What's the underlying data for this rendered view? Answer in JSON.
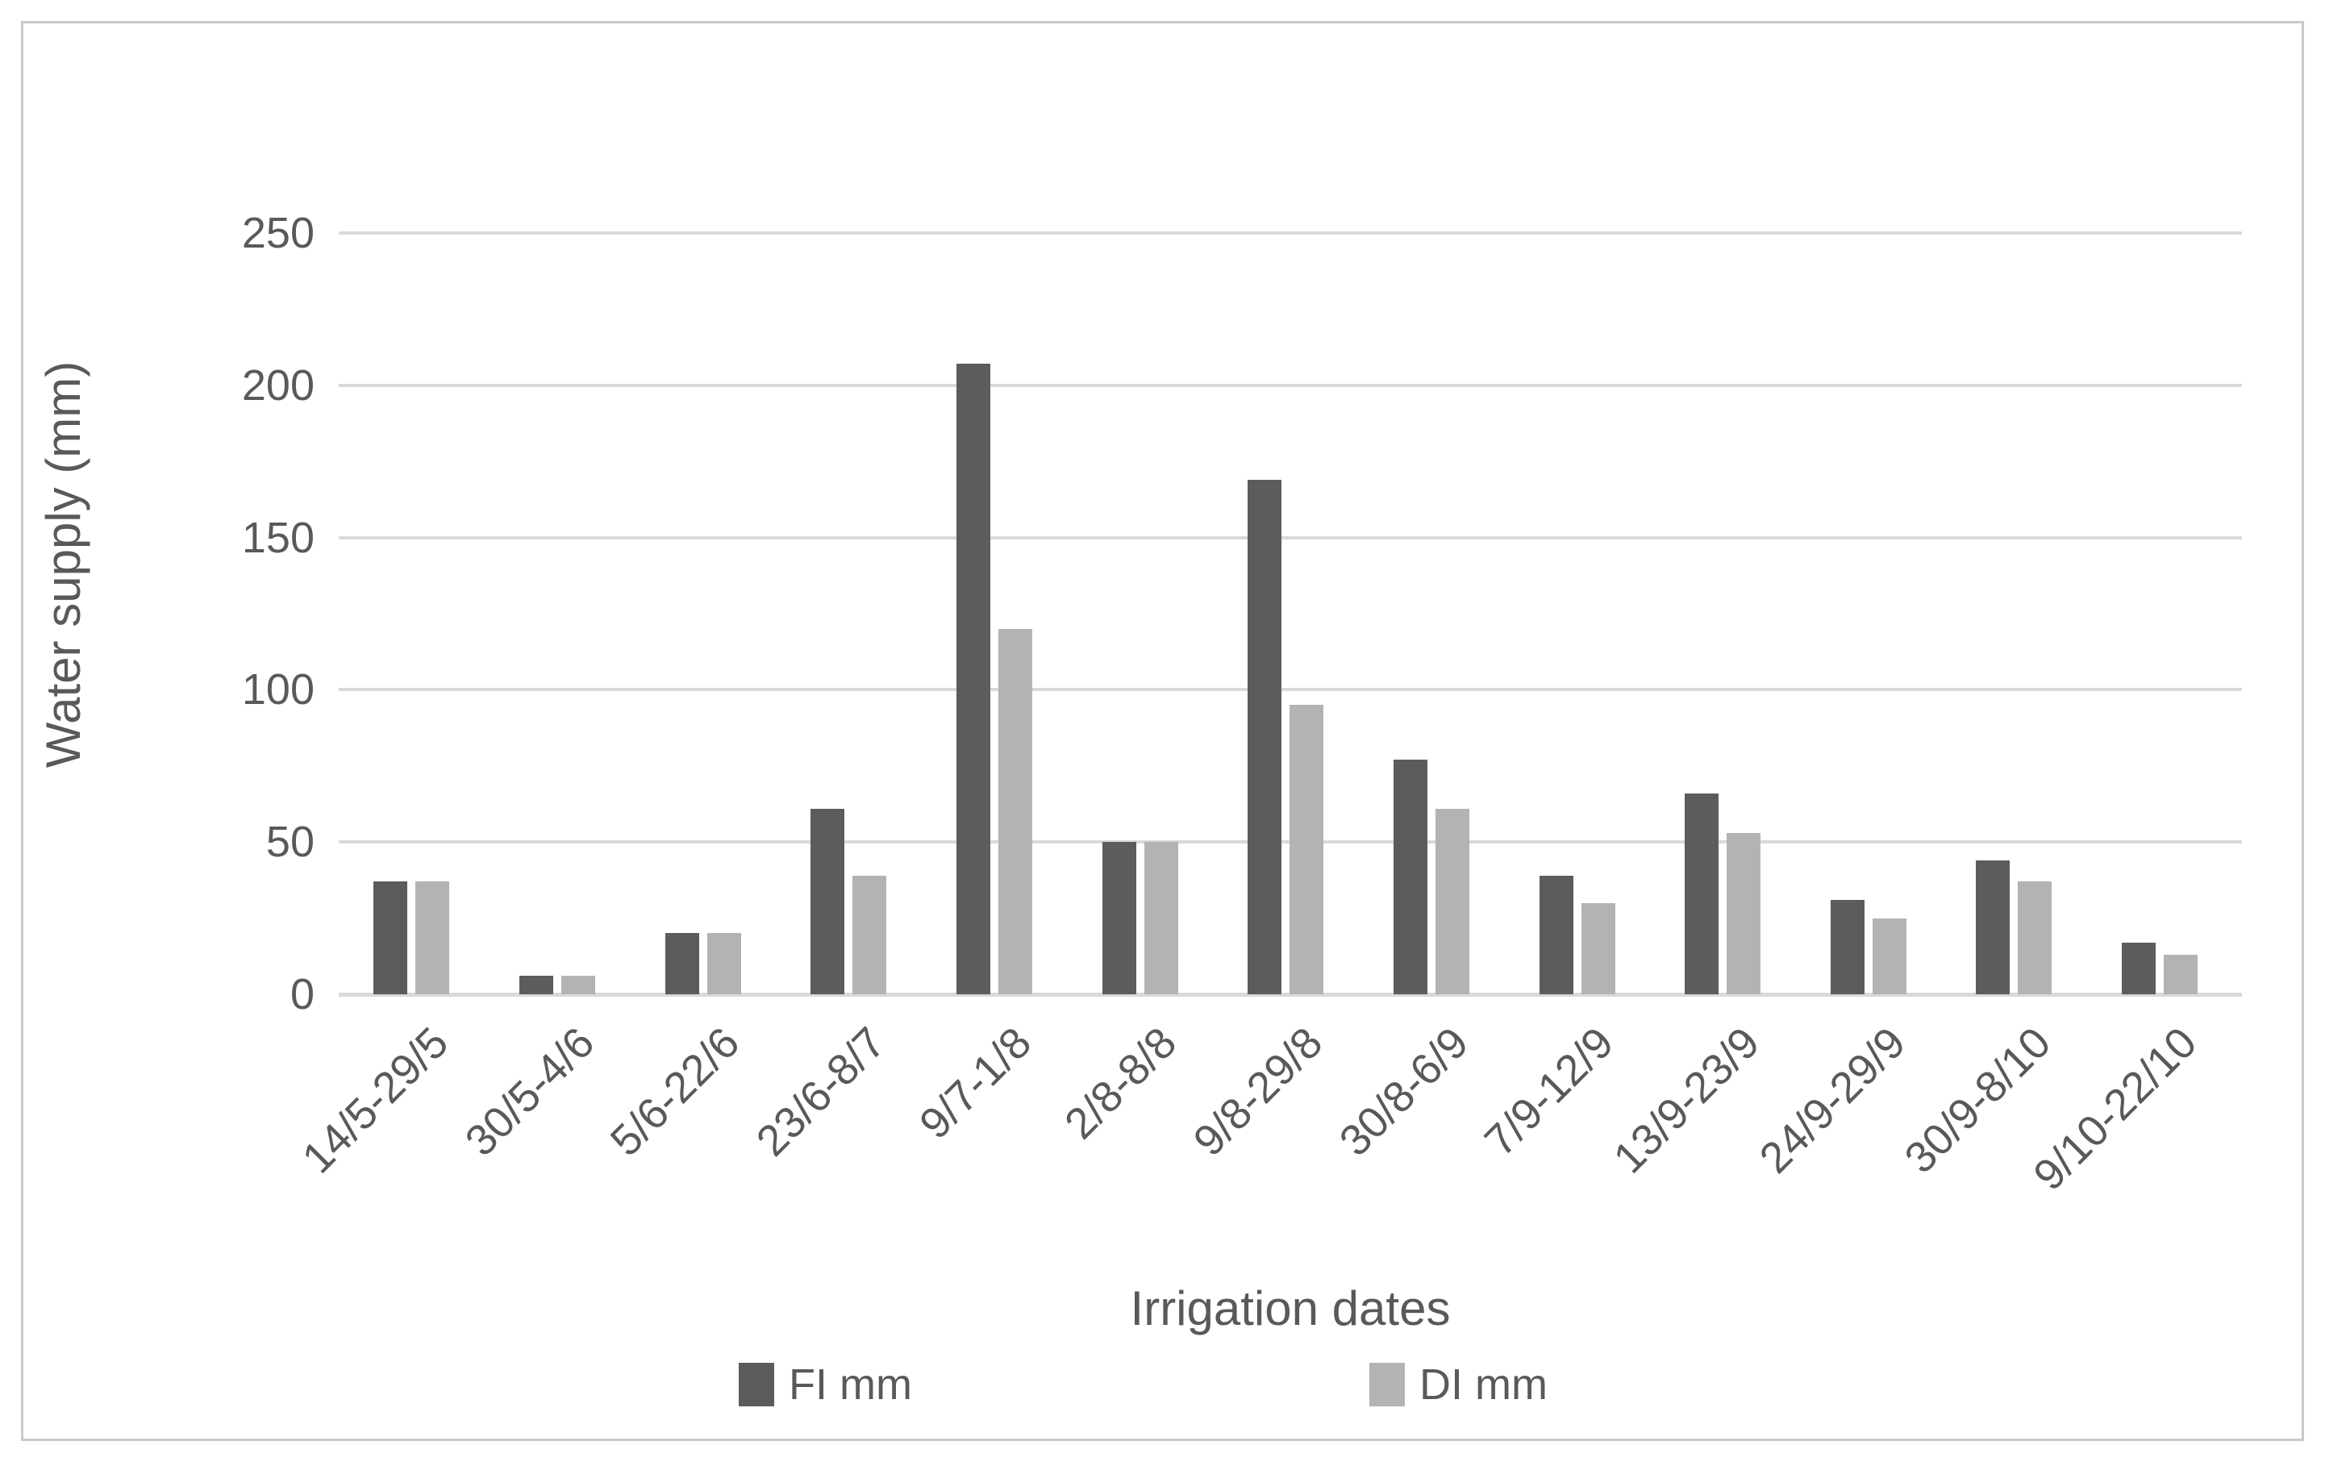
{
  "chart_data": {
    "type": "bar",
    "title": "",
    "xlabel": "Irrigation dates",
    "ylabel": "Water supply (mm)",
    "categories": [
      "14/5-29/5",
      "30/5-4/6",
      "5/6-22/6",
      "23/6-8/7",
      "9/7-1/8",
      "2/8-8/8",
      "9/8-29/8",
      "30/8-6/9",
      "7/9-12/9",
      "13/9-23/9",
      "24/9-29/9",
      "30/9-8/10",
      "9/10-22/10"
    ],
    "series": [
      {
        "name": "FI mm",
        "color": "#5c5c5c",
        "values": [
          37,
          6,
          20,
          61,
          207,
          50,
          169,
          77,
          39,
          66,
          31,
          44,
          17
        ]
      },
      {
        "name": "DI mm",
        "color": "#b3b3b3",
        "values": [
          37,
          6,
          20,
          39,
          120,
          50,
          95,
          61,
          30,
          53,
          25,
          37,
          13
        ]
      }
    ],
    "ylim": [
      0,
      250
    ],
    "yticks": [
      0,
      50,
      100,
      150,
      200,
      250
    ],
    "grid": true,
    "gridline_color": "#d9d9d9",
    "axis_text_color": "#595959",
    "legend_position": "bottom",
    "x_tick_rotation_deg": 45,
    "border_color": "#c9c9c9"
  }
}
